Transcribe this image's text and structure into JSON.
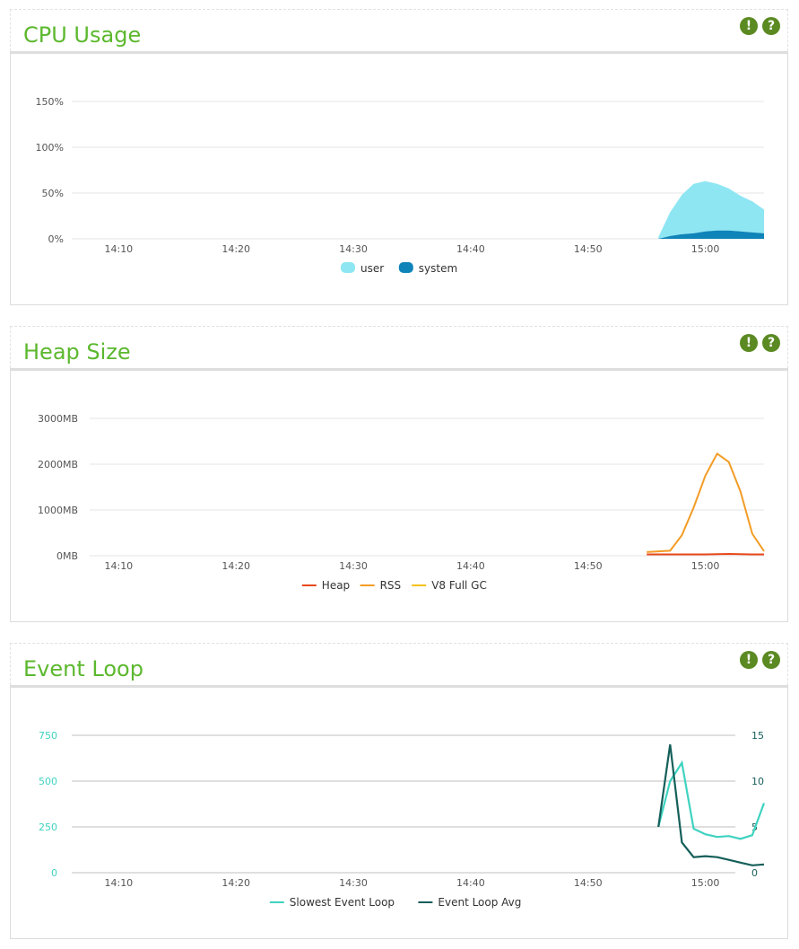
{
  "panels": {
    "cpu": {
      "title": "CPU Usage",
      "warn_glyph": "!",
      "help_glyph": "?"
    },
    "heap": {
      "title": "Heap Size",
      "warn_glyph": "!",
      "help_glyph": "?"
    },
    "loop": {
      "title": "Event Loop",
      "warn_glyph": "!",
      "help_glyph": "?"
    }
  },
  "colors": {
    "title": "#5cb82e",
    "icon_bg": "#5b8a22",
    "user": "#8ee6f3",
    "system": "#0f84b8",
    "heap": "#e8471b",
    "rss": "#f39c25",
    "gc": "#f3c10e",
    "slowest": "#3fd3c0",
    "avg": "#155f5a"
  },
  "chart_data": [
    {
      "type": "area",
      "title": "CPU Usage",
      "x_ticks": [
        "14:10",
        "14:20",
        "14:30",
        "14:40",
        "14:50",
        "15:00"
      ],
      "x_tick_minutes": [
        10,
        20,
        30,
        40,
        50,
        60
      ],
      "xlim": [
        6,
        65
      ],
      "y_ticks": [
        "0%",
        "50%",
        "100%",
        "150%"
      ],
      "y_tick_values": [
        0,
        50,
        100,
        150
      ],
      "ylim": [
        0,
        150
      ],
      "stacked": true,
      "x_minutes": [
        56,
        57,
        58,
        59,
        60,
        61,
        62,
        63,
        64,
        65
      ],
      "series": [
        {
          "name": "user",
          "color_key": "user",
          "values": [
            2,
            26,
            43,
            54,
            55,
            51,
            46,
            39,
            34,
            26
          ]
        },
        {
          "name": "system",
          "color_key": "system",
          "values": [
            0,
            3,
            5,
            6,
            8,
            9,
            9,
            8,
            7,
            6
          ]
        }
      ],
      "legend": [
        "user",
        "system"
      ],
      "legend_position": "bottom",
      "grid": true
    },
    {
      "type": "line",
      "title": "Heap Size",
      "x_ticks": [
        "14:10",
        "14:20",
        "14:30",
        "14:40",
        "14:50",
        "15:00"
      ],
      "x_tick_minutes": [
        10,
        20,
        30,
        40,
        50,
        60
      ],
      "xlim": [
        6,
        65
      ],
      "y_ticks": [
        "0MB",
        "1000MB",
        "2000MB",
        "3000MB"
      ],
      "y_tick_values": [
        0,
        1000,
        2000,
        3000
      ],
      "ylim": [
        0,
        3000
      ],
      "x_minutes": [
        55,
        57,
        58,
        59,
        60,
        61,
        62,
        63,
        64,
        65
      ],
      "series": [
        {
          "name": "Heap",
          "color_key": "heap",
          "values": [
            30,
            30,
            30,
            30,
            30,
            35,
            40,
            35,
            30,
            30
          ]
        },
        {
          "name": "RSS",
          "color_key": "rss",
          "values": [
            80,
            110,
            450,
            1050,
            1750,
            2230,
            2050,
            1400,
            480,
            100
          ]
        },
        {
          "name": "V8 Full GC",
          "color_key": "gc",
          "values": []
        }
      ],
      "legend": [
        "Heap",
        "RSS",
        "V8 Full GC"
      ],
      "legend_position": "bottom",
      "grid": true
    },
    {
      "type": "line",
      "title": "Event Loop",
      "x_ticks": [
        "14:10",
        "14:20",
        "14:30",
        "14:40",
        "14:50",
        "15:00"
      ],
      "x_tick_minutes": [
        10,
        20,
        30,
        40,
        50,
        60
      ],
      "xlim": [
        6,
        65
      ],
      "y_ticks_left": [
        "0",
        "250",
        "500",
        "750"
      ],
      "y_tick_values_left": [
        0,
        250,
        500,
        750
      ],
      "ylim_left": [
        0,
        750
      ],
      "y_ticks_right": [
        "0",
        "5",
        "10",
        "15"
      ],
      "y_tick_values_right": [
        0,
        5,
        10,
        15
      ],
      "ylim_right": [
        0,
        15
      ],
      "series": [
        {
          "name": "Slowest Event Loop",
          "axis": "left",
          "color_key": "slowest",
          "x_minutes": [
            56,
            57,
            58,
            59,
            60,
            61,
            62,
            63,
            64,
            65
          ],
          "values": [
            250,
            500,
            600,
            240,
            210,
            195,
            200,
            185,
            205,
            380
          ]
        },
        {
          "name": "Event Loop Avg",
          "axis": "right",
          "color_key": "avg",
          "x_minutes": [
            56,
            57,
            58,
            59,
            60,
            61,
            62,
            63,
            64,
            65
          ],
          "values": [
            5,
            14,
            3.3,
            1.7,
            1.8,
            1.7,
            1.4,
            1.1,
            0.8,
            0.9
          ]
        }
      ],
      "legend": [
        "Slowest Event Loop",
        "Event Loop Avg"
      ],
      "legend_position": "bottom",
      "grid": true
    }
  ]
}
